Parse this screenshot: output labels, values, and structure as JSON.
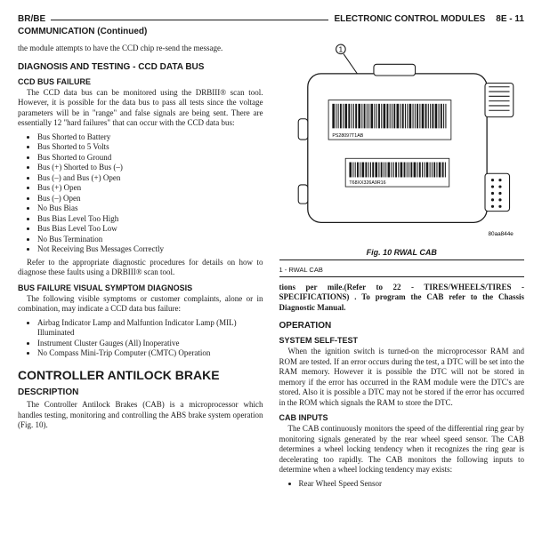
{
  "header": {
    "left": "BR/BE",
    "right_title": "ELECTRONIC CONTROL MODULES",
    "right_page": "8E - 11",
    "continued": "COMMUNICATION (Continued)"
  },
  "left": {
    "intro": "the module attempts to have the CCD chip re-send the message.",
    "h2_diag": "DIAGNOSIS AND TESTING - CCD DATA BUS",
    "h3_ccd": "CCD BUS FAILURE",
    "ccd_p": "The CCD data bus can be monitored using the DRBIII® scan tool. However, it is possible for the data bus to pass all tests since the voltage parameters will be in \"range\" and false signals are being sent. There are essentially 12 \"hard failures\" that can occur with the CCD data bus:",
    "ccd_list": [
      "Bus Shorted to Battery",
      "Bus Shorted to 5 Volts",
      "Bus Shorted to Ground",
      "Bus (+) Shorted to Bus (–)",
      "Bus (–) and Bus (+) Open",
      "Bus (+) Open",
      "Bus (–) Open",
      "No Bus Bias",
      "Bus Bias Level Too High",
      "Bus Bias Level Too Low",
      "No Bus Termination",
      "Not Receiving Bus Messages Correctly"
    ],
    "ccd_refer": "Refer to the appropriate diagnostic procedures for details on how to diagnose these faults using a DRBIII® scan tool.",
    "h3_visual": "BUS FAILURE VISUAL SYMPTOM DIAGNOSIS",
    "vis_p": "The following visible symptoms or customer complaints, alone or in combination, may indicate a CCD data bus failure:",
    "vis_list": [
      "Airbag Indicator Lamp and Malfuntion Indicator Lamp (MIL) Illuminated",
      "Instrument Cluster Gauges (All) Inoperative",
      "No Compass Mini-Trip Computer (CMTC) Operation"
    ],
    "h1_cab": "CONTROLLER ANTILOCK BRAKE",
    "h2_desc": "DESCRIPTION",
    "desc_p": "The Controller Antilock Brakes (CAB) is a microprocessor which handles testing, monitoring and controlling the ABS brake system operation (Fig. 10)."
  },
  "right": {
    "fig_no": "Fig. 10 RWAL CAB",
    "fig_key": "1 - RWAL CAB",
    "fig_partno": "80aa844e",
    "fig_label1": "PS28097T1AB",
    "fig_label2": "T68XX326A9R16",
    "spec_p": "tions per mile.(Refer to 22 - TIRES/WHEELS/TIRES - SPECIFICATIONS) . To program the CAB refer to the Chassis Diagnostic Manual.",
    "h2_op": "OPERATION",
    "h3_selftest": "SYSTEM SELF-TEST",
    "selftest_p": "When the ignition switch is turned-on the microprocessor RAM and ROM are tested. If an error occurs during the test, a DTC will be set into the RAM memory. However it is possible the DTC will not be stored in memory if the error has occurred in the RAM module were the DTC's are stored. Also it is possible a DTC may not be stored if the error has occurred in the ROM which signals the RAM to store the DTC.",
    "h3_inputs": "CAB INPUTS",
    "inputs_p": "The CAB continuously monitors the speed of the differential ring gear by monitoring signals generated by the rear wheel speed sensor. The CAB determines a wheel locking tendency when it recognizes the ring gear is decelerating too rapidly. The CAB monitors the following inputs to determine when a wheel locking tendency may exists:",
    "inputs_list": [
      "Rear Wheel Speed Sensor"
    ]
  }
}
